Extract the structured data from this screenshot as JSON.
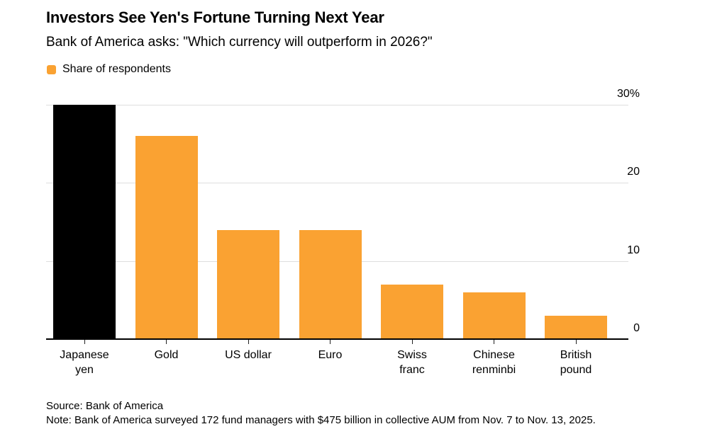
{
  "header": {
    "title": "Investors See Yen's Fortune Turning Next Year",
    "subtitle": "Bank of America asks: \"Which currency will outperform in 2026?\""
  },
  "legend": {
    "label": "Share of respondents",
    "swatch_color": "#FAA232"
  },
  "chart_data": {
    "type": "bar",
    "title": "Investors See Yen's Fortune Turning Next Year",
    "subtitle": "Bank of America asks: \"Which currency will outperform in 2026?\"",
    "series_name": "Share of respondents",
    "categories": [
      "Japanese yen",
      "Gold",
      "US dollar",
      "Euro",
      "Swiss franc",
      "Chinese renminbi",
      "British pound"
    ],
    "category_lines": [
      [
        "Japanese",
        "yen"
      ],
      [
        "Gold"
      ],
      [
        "US dollar"
      ],
      [
        "Euro"
      ],
      [
        "Swiss",
        "franc"
      ],
      [
        "Chinese",
        "renminbi"
      ],
      [
        "British",
        "pound"
      ]
    ],
    "values": [
      30,
      26,
      14,
      14,
      7,
      6,
      3
    ],
    "unit": "%",
    "bar_colors": [
      "#000000",
      "#FAA232",
      "#FAA232",
      "#FAA232",
      "#FAA232",
      "#FAA232",
      "#FAA232"
    ],
    "ylim": [
      0,
      30
    ],
    "yticks": [
      {
        "value": 30,
        "label": "30%"
      },
      {
        "value": 20,
        "label": "20"
      },
      {
        "value": 10,
        "label": "10"
      },
      {
        "value": 0,
        "label": "0"
      }
    ],
    "grid": "horizontal",
    "axis_label_position": "right",
    "legend_position": "top-left"
  },
  "colors": {
    "accent_orange": "#FAA232",
    "highlight_black": "#000000",
    "gridline": "#DEDEDE",
    "text": "#000000"
  },
  "footer": {
    "source": "Source: Bank of America",
    "note": "Note: Bank of America surveyed 172 fund managers with $475 billion in collective AUM from Nov. 7 to Nov. 13, 2025."
  }
}
